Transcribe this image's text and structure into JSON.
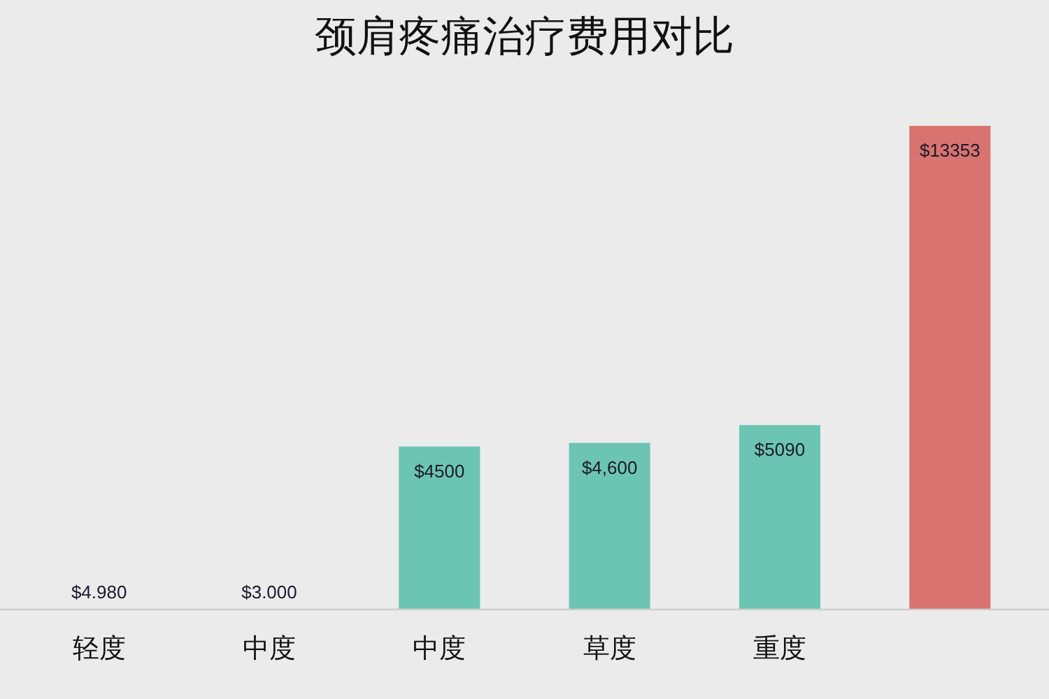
{
  "chart_data": {
    "type": "bar",
    "title": "颈肩疼痛治疗费用对比",
    "categories": [
      "轻度",
      "中度",
      "中度",
      "草度",
      "重度",
      null
    ],
    "values": [
      4.98,
      3.0,
      4500,
      4600,
      5090,
      13353
    ],
    "value_labels": [
      "$4.980",
      "$3.000",
      "$4500",
      "$4,600",
      "$5090",
      "$13353"
    ],
    "colors": [
      "#8dbadc",
      "#8dbadc",
      "#6cc5b3",
      "#6cc5b3",
      "#6cc5b3",
      "#d9736f"
    ]
  }
}
